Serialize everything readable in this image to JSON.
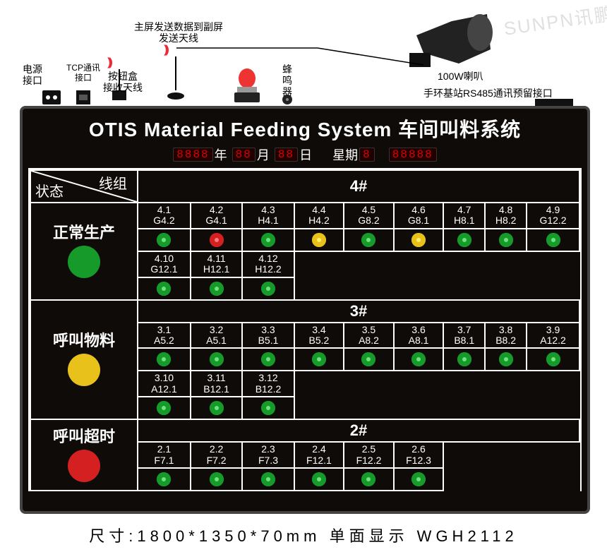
{
  "watermark": "SUNPN讯鹏",
  "colors": {
    "board_bg": "#0f0b08",
    "border": "#ffffff",
    "seg_on": "#d00000",
    "green": "#169b2b",
    "green_center": "#6fe27e",
    "yellow": "#e8c21b",
    "yellow_center": "#fff06a",
    "red": "#d42020",
    "red_center": "#ff7d7d"
  },
  "top_labels": {
    "power": {
      "text": "电源\n接口"
    },
    "tcp": {
      "text": "TCP通讯\n接口"
    },
    "btnbox": {
      "text": "按钮盒\n接收天线"
    },
    "txant": {
      "text": "主屏发送数据到副屏\n发送天线"
    },
    "buzzer": {
      "text": "蜂\n鸣\n器"
    },
    "speaker": {
      "text": "100W喇叭"
    },
    "rs485": {
      "text": "手环基站RS485通讯预留接口"
    }
  },
  "title": "OTIS Material Feeding System 车间叫料系统",
  "date": {
    "year": "8888",
    "month": "88",
    "day": "88",
    "week": "8",
    "extra": "88888",
    "lbl_year": "年",
    "lbl_month": "月",
    "lbl_day": "日",
    "lbl_week": "星期"
  },
  "hdr": {
    "line_group": "线组",
    "status": "状态"
  },
  "statuses": [
    {
      "name": "正常生产",
      "color": "#169b2b"
    },
    {
      "name": "呼叫物料",
      "color": "#e8c21b"
    },
    {
      "name": "呼叫超时",
      "color": "#d42020"
    }
  ],
  "groups": [
    {
      "title": "4#",
      "rows": [
        [
          {
            "l1": "4.1",
            "l2": "G4.2",
            "led": "green"
          },
          {
            "l1": "4.2",
            "l2": "G4.1",
            "led": "red"
          },
          {
            "l1": "4.3",
            "l2": "H4.1",
            "led": "green"
          },
          {
            "l1": "4.4",
            "l2": "H4.2",
            "led": "yellow"
          },
          {
            "l1": "4.5",
            "l2": "G8.2",
            "led": "green"
          },
          {
            "l1": "4.6",
            "l2": "G8.1",
            "led": "yellow"
          },
          {
            "l1": "4.7",
            "l2": "H8.1",
            "led": "green"
          },
          {
            "l1": "4.8",
            "l2": "H8.2",
            "led": "green"
          },
          {
            "l1": "4.9",
            "l2": "G12.2",
            "led": "green"
          }
        ],
        [
          {
            "l1": "4.10",
            "l2": "G12.1",
            "led": "green"
          },
          {
            "l1": "4.11",
            "l2": "H12.1",
            "led": "green"
          },
          {
            "l1": "4.12",
            "l2": "H12.2",
            "led": "green"
          }
        ]
      ]
    },
    {
      "title": "3#",
      "rows": [
        [
          {
            "l1": "3.1",
            "l2": "A5.2",
            "led": "green"
          },
          {
            "l1": "3.2",
            "l2": "A5.1",
            "led": "green"
          },
          {
            "l1": "3.3",
            "l2": "B5.1",
            "led": "green"
          },
          {
            "l1": "3.4",
            "l2": "B5.2",
            "led": "green"
          },
          {
            "l1": "3.5",
            "l2": "A8.2",
            "led": "green"
          },
          {
            "l1": "3.6",
            "l2": "A8.1",
            "led": "green"
          },
          {
            "l1": "3.7",
            "l2": "B8.1",
            "led": "green"
          },
          {
            "l1": "3.8",
            "l2": "B8.2",
            "led": "green"
          },
          {
            "l1": "3.9",
            "l2": "A12.2",
            "led": "green"
          }
        ],
        [
          {
            "l1": "3.10",
            "l2": "A12.1",
            "led": "green"
          },
          {
            "l1": "3.11",
            "l2": "B12.1",
            "led": "green"
          },
          {
            "l1": "3.12",
            "l2": "B12.2",
            "led": "green"
          }
        ]
      ]
    },
    {
      "title": "2#",
      "rows": [
        [
          {
            "l1": "2.1",
            "l2": "F7.1",
            "led": "green"
          },
          {
            "l1": "2.2",
            "l2": "F7.2",
            "led": "green"
          },
          {
            "l1": "2.3",
            "l2": "F7.3",
            "led": "green"
          },
          {
            "l1": "2.4",
            "l2": "F12.1",
            "led": "green"
          },
          {
            "l1": "2.5",
            "l2": "F12.2",
            "led": "green"
          },
          {
            "l1": "2.6",
            "l2": "F12.3",
            "led": "green"
          }
        ]
      ]
    }
  ],
  "footer": "尺寸:1800*1350*70mm 单面显示 WGH2112"
}
